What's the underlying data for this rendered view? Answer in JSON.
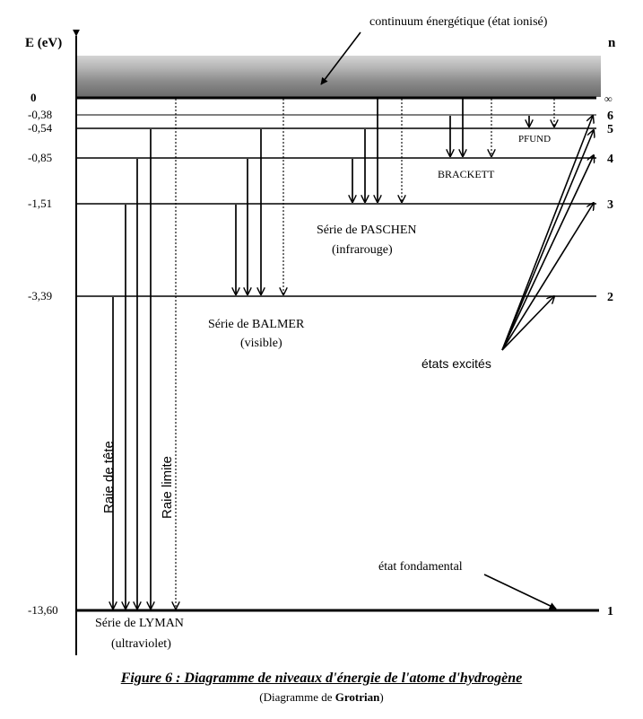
{
  "axis": {
    "label": "E (eV)",
    "n_label": "n"
  },
  "continuum_label": "continuum énergétique (état ionisé)",
  "levels": [
    {
      "n": "∞",
      "energy": "0",
      "value": 0
    },
    {
      "n": "6",
      "energy": "-0,38",
      "value": -0.38
    },
    {
      "n": "5",
      "energy": "-0,54",
      "value": -0.54
    },
    {
      "n": "4",
      "energy": "-0,85",
      "value": -0.85
    },
    {
      "n": "3",
      "energy": "-1,51",
      "value": -1.51
    },
    {
      "n": "2",
      "energy": "-3,39",
      "value": -3.39
    },
    {
      "n": "1",
      "energy": "-13,60",
      "value": -13.6
    }
  ],
  "series": {
    "lyman": {
      "line1": "Série de LYMAN",
      "line2": "(ultraviolet)"
    },
    "balmer": {
      "line1": "Série de BALMER",
      "line2": "(visible)"
    },
    "paschen": {
      "line1": "Série de PASCHEN",
      "line2": "(infrarouge)"
    },
    "brackett": {
      "line1": "BRACKETT"
    },
    "pfund": {
      "line1": "PFUND"
    }
  },
  "raie_tete": "Raie de tête",
  "raie_limite": "Raie limite",
  "etats_excites": "états excités",
  "etat_fondamental": "état fondamental",
  "caption": {
    "title": "Figure 6 : Diagramme de niveaux d'énergie de l'atome d'hydrogène",
    "subtitle_prefix": "(Diagramme de ",
    "subtitle_bold": "Grotrian",
    "subtitle_suffix": ")"
  }
}
